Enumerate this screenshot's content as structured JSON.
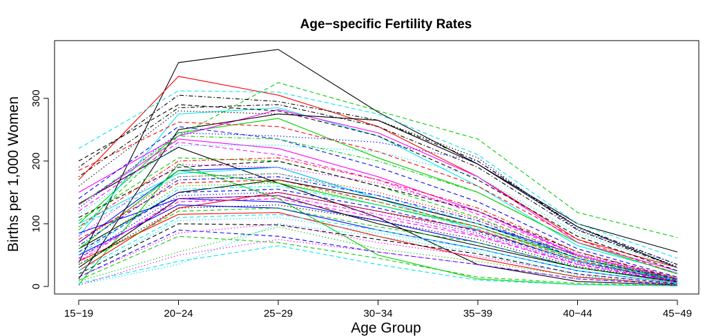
{
  "chart_data": {
    "type": "line",
    "title": "Age−specific Fertility Rates",
    "xlabel": "Age Group",
    "ylabel": "Births per 1,000 Women",
    "categories": [
      "15−19",
      "20−24",
      "25−29",
      "30−34",
      "35−39",
      "40−44",
      "45−49"
    ],
    "yticks": [
      0,
      100,
      200,
      300
    ],
    "ylim": [
      -12,
      392
    ],
    "grid": false,
    "legend": "none",
    "series": [
      {
        "color": "#000000",
        "dash": "solid",
        "values": [
          38,
          357,
          378,
          278,
          195,
          100,
          55
        ]
      },
      {
        "color": "#ff0000",
        "dash": "solid",
        "values": [
          170,
          335,
          305,
          255,
          175,
          75,
          30
        ]
      },
      {
        "color": "#00cd00",
        "dash": "solid",
        "values": [
          100,
          245,
          268,
          205,
          150,
          70,
          20
        ]
      },
      {
        "color": "#0000ff",
        "dash": "solid",
        "values": [
          70,
          185,
          190,
          140,
          100,
          50,
          12
        ]
      },
      {
        "color": "#00e5ee",
        "dash": "solid",
        "values": [
          80,
          275,
          285,
          240,
          160,
          65,
          22
        ]
      },
      {
        "color": "#ff00ff",
        "dash": "solid",
        "values": [
          150,
          240,
          282,
          245,
          175,
          70,
          25
        ]
      },
      {
        "color": "#000000",
        "dash": "solid",
        "values": [
          132,
          222,
          165,
          110,
          35,
          8,
          2
        ]
      },
      {
        "color": "#ff0000",
        "dash": "solid",
        "values": [
          40,
          115,
          118,
          80,
          45,
          15,
          3
        ]
      },
      {
        "color": "#00cd00",
        "dash": "solid",
        "values": [
          3,
          195,
          140,
          50,
          12,
          3,
          1
        ]
      },
      {
        "color": "#0000ff",
        "dash": "solid",
        "values": [
          85,
          140,
          135,
          105,
          70,
          30,
          8
        ]
      },
      {
        "color": "#00e5ee",
        "dash": "solid",
        "values": [
          100,
          180,
          190,
          140,
          90,
          40,
          10
        ]
      },
      {
        "color": "#ff00ff",
        "dash": "solid",
        "values": [
          130,
          235,
          220,
          175,
          120,
          50,
          12
        ]
      },
      {
        "color": "#000000",
        "dash": "solid",
        "values": [
          60,
          150,
          170,
          140,
          100,
          45,
          10
        ]
      },
      {
        "color": "#ff0000",
        "dash": "solid",
        "values": [
          25,
          125,
          150,
          120,
          90,
          40,
          8
        ]
      },
      {
        "color": "#00cd00",
        "dash": "solid",
        "values": [
          60,
          185,
          165,
          130,
          95,
          45,
          12
        ]
      },
      {
        "color": "#0000ff",
        "dash": "solid",
        "values": [
          50,
          130,
          125,
          90,
          60,
          25,
          5
        ]
      },
      {
        "color": "#000000",
        "dash": "solid",
        "values": [
          30,
          140,
          145,
          100,
          65,
          30,
          7
        ]
      },
      {
        "color": "#000000",
        "dash": "solid",
        "values": [
          12,
          250,
          275,
          265,
          195,
          95,
          30
        ]
      },
      {
        "color": "#00cd00",
        "dash": "dashed",
        "values": [
          90,
          240,
          325,
          280,
          235,
          118,
          78
        ]
      },
      {
        "color": "#00e5ee",
        "dash": "dashed",
        "values": [
          220,
          312,
          310,
          275,
          210,
          100,
          45
        ]
      },
      {
        "color": "#000000",
        "dash": "dashed",
        "values": [
          200,
          290,
          280,
          240,
          170,
          80,
          25
        ]
      },
      {
        "color": "#ff0000",
        "dash": "dashed",
        "values": [
          185,
          262,
          255,
          215,
          160,
          75,
          20
        ]
      },
      {
        "color": "#0000ff",
        "dash": "dashed",
        "values": [
          140,
          255,
          235,
          190,
          135,
          60,
          15
        ]
      },
      {
        "color": "#ff00ff",
        "dash": "dashed",
        "values": [
          120,
          230,
          210,
          170,
          115,
          50,
          12
        ]
      },
      {
        "color": "#00cd00",
        "dash": "dashed",
        "values": [
          105,
          205,
          200,
          160,
          110,
          48,
          10
        ]
      },
      {
        "color": "#00e5ee",
        "dash": "dashed",
        "values": [
          95,
          175,
          180,
          145,
          100,
          45,
          10
        ]
      },
      {
        "color": "#000000",
        "dash": "dashed",
        "values": [
          110,
          190,
          200,
          160,
          120,
          55,
          12
        ]
      },
      {
        "color": "#ff0000",
        "dash": "dashed",
        "values": [
          75,
          165,
          170,
          135,
          95,
          42,
          9
        ]
      },
      {
        "color": "#0000ff",
        "dash": "dashed",
        "values": [
          55,
          150,
          155,
          125,
          88,
          40,
          8
        ]
      },
      {
        "color": "#ff00ff",
        "dash": "dashed",
        "values": [
          45,
          135,
          140,
          110,
          80,
          35,
          7
        ]
      },
      {
        "color": "#00cd00",
        "dash": "dashed",
        "values": [
          35,
          120,
          125,
          95,
          70,
          30,
          6
        ]
      },
      {
        "color": "#00e5ee",
        "dash": "dashed",
        "values": [
          25,
          110,
          115,
          90,
          60,
          25,
          5
        ]
      },
      {
        "color": "#000000",
        "dash": "dashed",
        "values": [
          20,
          100,
          98,
          75,
          52,
          20,
          4
        ]
      },
      {
        "color": "#0000ff",
        "dash": "dashed",
        "values": [
          15,
          90,
          80,
          55,
          35,
          12,
          3
        ]
      },
      {
        "color": "#00cd00",
        "dash": "dashed",
        "values": [
          10,
          80,
          70,
          45,
          15,
          5,
          1
        ]
      },
      {
        "color": "#00e5ee",
        "dash": "dashed",
        "values": [
          5,
          40,
          65,
          35,
          10,
          3,
          1
        ]
      },
      {
        "color": "#000000",
        "dash": "dotdash",
        "values": [
          190,
          305,
          295,
          265,
          200,
          95,
          35
        ]
      },
      {
        "color": "#000000",
        "dash": "dotdash",
        "values": [
          175,
          285,
          290,
          255,
          190,
          90,
          30
        ]
      },
      {
        "color": "#00cd00",
        "dash": "dotdash",
        "values": [
          130,
          240,
          235,
          200,
          150,
          70,
          20
        ]
      },
      {
        "color": "#ff0000",
        "dash": "dotdash",
        "values": [
          95,
          200,
          205,
          170,
          125,
          55,
          14
        ]
      },
      {
        "color": "#0000ff",
        "dash": "dotdash",
        "values": [
          65,
          170,
          175,
          145,
          105,
          45,
          11
        ]
      },
      {
        "color": "#00e5ee",
        "dash": "dotdash",
        "values": [
          50,
          155,
          160,
          130,
          92,
          40,
          9
        ]
      },
      {
        "color": "#ff00ff",
        "dash": "dotdash",
        "values": [
          40,
          140,
          145,
          115,
          82,
          36,
          8
        ]
      },
      {
        "color": "#000000",
        "dash": "dotted",
        "values": [
          160,
          280,
          275,
          265,
          205,
          90,
          32
        ]
      },
      {
        "color": "#0000ff",
        "dash": "dotted",
        "values": [
          125,
          245,
          240,
          230,
          200,
          92,
          35
        ]
      },
      {
        "color": "#00e5ee",
        "dash": "dotted",
        "values": [
          115,
          225,
          225,
          215,
          175,
          85,
          30
        ]
      },
      {
        "color": "#ff00ff",
        "dash": "dotted",
        "values": [
          80,
          195,
          190,
          165,
          120,
          52,
          14
        ]
      },
      {
        "color": "#ff0000",
        "dash": "dotted",
        "values": [
          70,
          175,
          180,
          150,
          108,
          48,
          12
        ]
      },
      {
        "color": "#00cd00",
        "dash": "dotted",
        "values": [
          55,
          160,
          165,
          135,
          95,
          42,
          10
        ]
      },
      {
        "color": "#0000ff",
        "dash": "dotted",
        "values": [
          45,
          145,
          150,
          120,
          85,
          38,
          9
        ]
      },
      {
        "color": "#000000",
        "dash": "dotted",
        "values": [
          35,
          125,
          130,
          105,
          75,
          32,
          7
        ]
      },
      {
        "color": "#00e5ee",
        "dash": "dotted",
        "values": [
          20,
          105,
          110,
          85,
          60,
          26,
          5
        ]
      },
      {
        "color": "#ff00ff",
        "dash": "dotted",
        "values": [
          15,
          85,
          100,
          70,
          48,
          20,
          4
        ]
      },
      {
        "color": "#00cd00",
        "dash": "dotted",
        "values": [
          8,
          55,
          95,
          60,
          40,
          16,
          3
        ]
      },
      {
        "color": "#00e5ee",
        "dash": "dotted",
        "values": [
          3,
          35,
          100,
          80,
          55,
          18,
          2
        ]
      },
      {
        "color": "#ff00ff",
        "dash": "dotted",
        "values": [
          2,
          50,
          75,
          55,
          35,
          12,
          2
        ]
      }
    ]
  }
}
